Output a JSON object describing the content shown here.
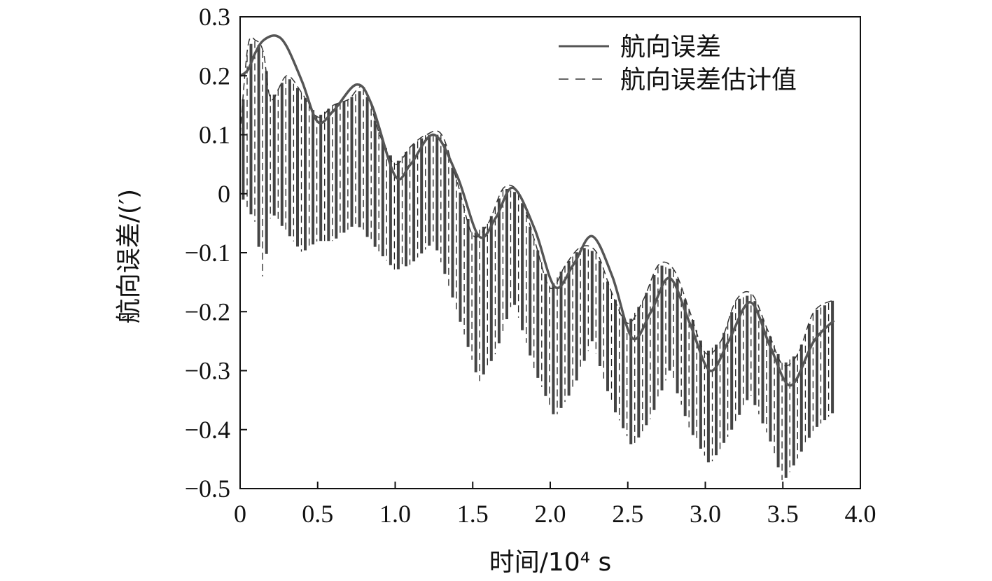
{
  "chart_data": {
    "type": "line",
    "title": "",
    "xlabel": "时间/10⁴ s",
    "ylabel": "航向误差/(′)",
    "xlim": [
      0,
      4.0
    ],
    "ylim": [
      -0.5,
      0.3
    ],
    "xticks": [
      0,
      0.5,
      1.0,
      1.5,
      2.0,
      2.5,
      3.0,
      3.5,
      4.0
    ],
    "xtick_labels": [
      "0",
      "0.5",
      "1.0",
      "1.5",
      "2.0",
      "2.5",
      "3.0",
      "3.5",
      "4.0"
    ],
    "yticks": [
      0.3,
      0.2,
      0.1,
      0,
      -0.1,
      -0.2,
      -0.3,
      -0.4,
      -0.5
    ],
    "ytick_labels": [
      "0.3",
      "0.2",
      "0.1",
      "0",
      "−0.1",
      "−0.2",
      "−0.3",
      "−0.4",
      "−0.5"
    ],
    "grid": false,
    "legend_position": "top-right",
    "colors": {
      "true_line": "#555555",
      "estimate_line": "#333333",
      "axes": "#111111"
    },
    "series": [
      {
        "name": "航向误差",
        "style": "solid",
        "x": [
          0,
          0.05,
          0.1,
          0.15,
          0.23,
          0.3,
          0.4,
          0.5,
          0.6,
          0.75,
          0.85,
          1.0,
          1.1,
          1.25,
          1.4,
          1.54,
          1.65,
          1.76,
          1.9,
          2.03,
          2.15,
          2.27,
          2.4,
          2.53,
          2.65,
          2.77,
          2.9,
          3.03,
          3.15,
          3.29,
          3.42,
          3.55,
          3.7,
          3.83
        ],
        "y": [
          0.2,
          0.21,
          0.24,
          0.26,
          0.268,
          0.25,
          0.19,
          0.122,
          0.14,
          0.185,
          0.15,
          0.03,
          0.05,
          0.1,
          0.03,
          -0.072,
          -0.04,
          0.01,
          -0.06,
          -0.158,
          -0.12,
          -0.072,
          -0.14,
          -0.245,
          -0.2,
          -0.143,
          -0.22,
          -0.3,
          -0.25,
          -0.184,
          -0.26,
          -0.325,
          -0.25,
          -0.215
        ]
      },
      {
        "name": "航向误差估计值",
        "style": "dashed",
        "x": [
          0,
          0.05,
          0.1,
          0.15,
          0.2,
          0.3,
          0.4,
          0.5,
          0.6,
          0.7,
          0.8,
          0.9,
          1.0,
          1.1,
          1.2,
          1.3,
          1.4,
          1.5,
          1.6,
          1.7,
          1.8,
          1.9,
          2.0,
          2.1,
          2.2,
          2.3,
          2.4,
          2.5,
          2.6,
          2.7,
          2.8,
          2.9,
          3.0,
          3.1,
          3.2,
          3.3,
          3.4,
          3.5,
          3.6,
          3.7,
          3.83
        ],
        "y": [
          0.1,
          0.25,
          0.26,
          0.24,
          0.16,
          0.2,
          0.17,
          0.13,
          0.15,
          0.16,
          0.18,
          0.1,
          0.05,
          0.08,
          0.1,
          0.1,
          0.02,
          -0.07,
          -0.05,
          0.01,
          0.0,
          -0.08,
          -0.16,
          -0.12,
          -0.09,
          -0.1,
          -0.17,
          -0.22,
          -0.18,
          -0.12,
          -0.13,
          -0.2,
          -0.27,
          -0.25,
          -0.18,
          -0.17,
          -0.23,
          -0.29,
          -0.27,
          -0.2,
          -0.18
        ]
      }
    ],
    "estimate_oscillation": {
      "cycle": 0.05,
      "lower_band": [
        [
          0,
          0.0
        ],
        [
          0.1,
          -0.05
        ],
        [
          0.15,
          -0.15
        ],
        [
          0.2,
          -0.03
        ],
        [
          0.4,
          -0.1
        ],
        [
          0.5,
          -0.08
        ],
        [
          0.6,
          -0.08
        ],
        [
          0.75,
          -0.05
        ],
        [
          0.9,
          -0.1
        ],
        [
          1.0,
          -0.13
        ],
        [
          1.1,
          -0.12
        ],
        [
          1.25,
          -0.08
        ],
        [
          1.4,
          -0.2
        ],
        [
          1.54,
          -0.32
        ],
        [
          1.65,
          -0.27
        ],
        [
          1.76,
          -0.18
        ],
        [
          1.9,
          -0.3
        ],
        [
          2.03,
          -0.38
        ],
        [
          2.15,
          -0.33
        ],
        [
          2.27,
          -0.25
        ],
        [
          2.4,
          -0.36
        ],
        [
          2.53,
          -0.43
        ],
        [
          2.65,
          -0.38
        ],
        [
          2.77,
          -0.3
        ],
        [
          2.9,
          -0.4
        ],
        [
          3.03,
          -0.46
        ],
        [
          3.15,
          -0.41
        ],
        [
          3.29,
          -0.34
        ],
        [
          3.42,
          -0.42
        ],
        [
          3.5,
          -0.49
        ],
        [
          3.55,
          -0.47
        ],
        [
          3.7,
          -0.4
        ],
        [
          3.83,
          -0.37
        ]
      ]
    }
  },
  "legend": {
    "items": [
      {
        "label": "航向误差"
      },
      {
        "label": "航向误差估计值"
      }
    ]
  }
}
